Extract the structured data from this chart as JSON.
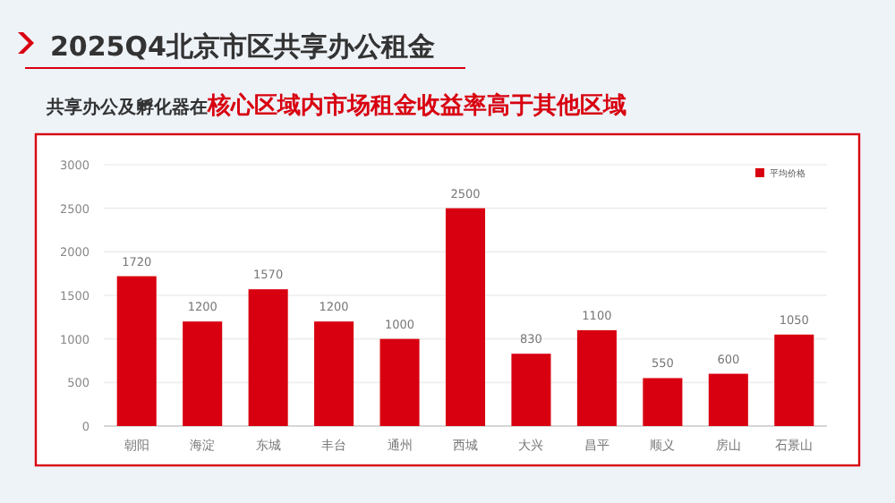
{
  "chart_data": {
    "type": "bar",
    "title": "2025Q4北京市区共享办公租金",
    "subtitle": "共享办公及孵化器在**核心区域内市场租金收益率高于其他区域**",
    "categories": [
      "朝阳",
      "海淀",
      "东城",
      "丰台",
      "通州",
      "西城",
      "大兴",
      "昌平",
      "顺义",
      "房山",
      "石景山"
    ],
    "series": [
      {
        "name": "平均价格",
        "color": "#d80010",
        "values": [
          1720,
          1200,
          1570,
          1200,
          1000,
          2500,
          830,
          1100,
          550,
          600,
          1050
        ]
      }
    ],
    "ylim": [
      0,
      3000
    ],
    "yticks": [
      0,
      500,
      1000,
      1500,
      2000,
      2500,
      3000
    ],
    "grid": "y",
    "legend": "top right",
    "data_labels": true
  }
}
